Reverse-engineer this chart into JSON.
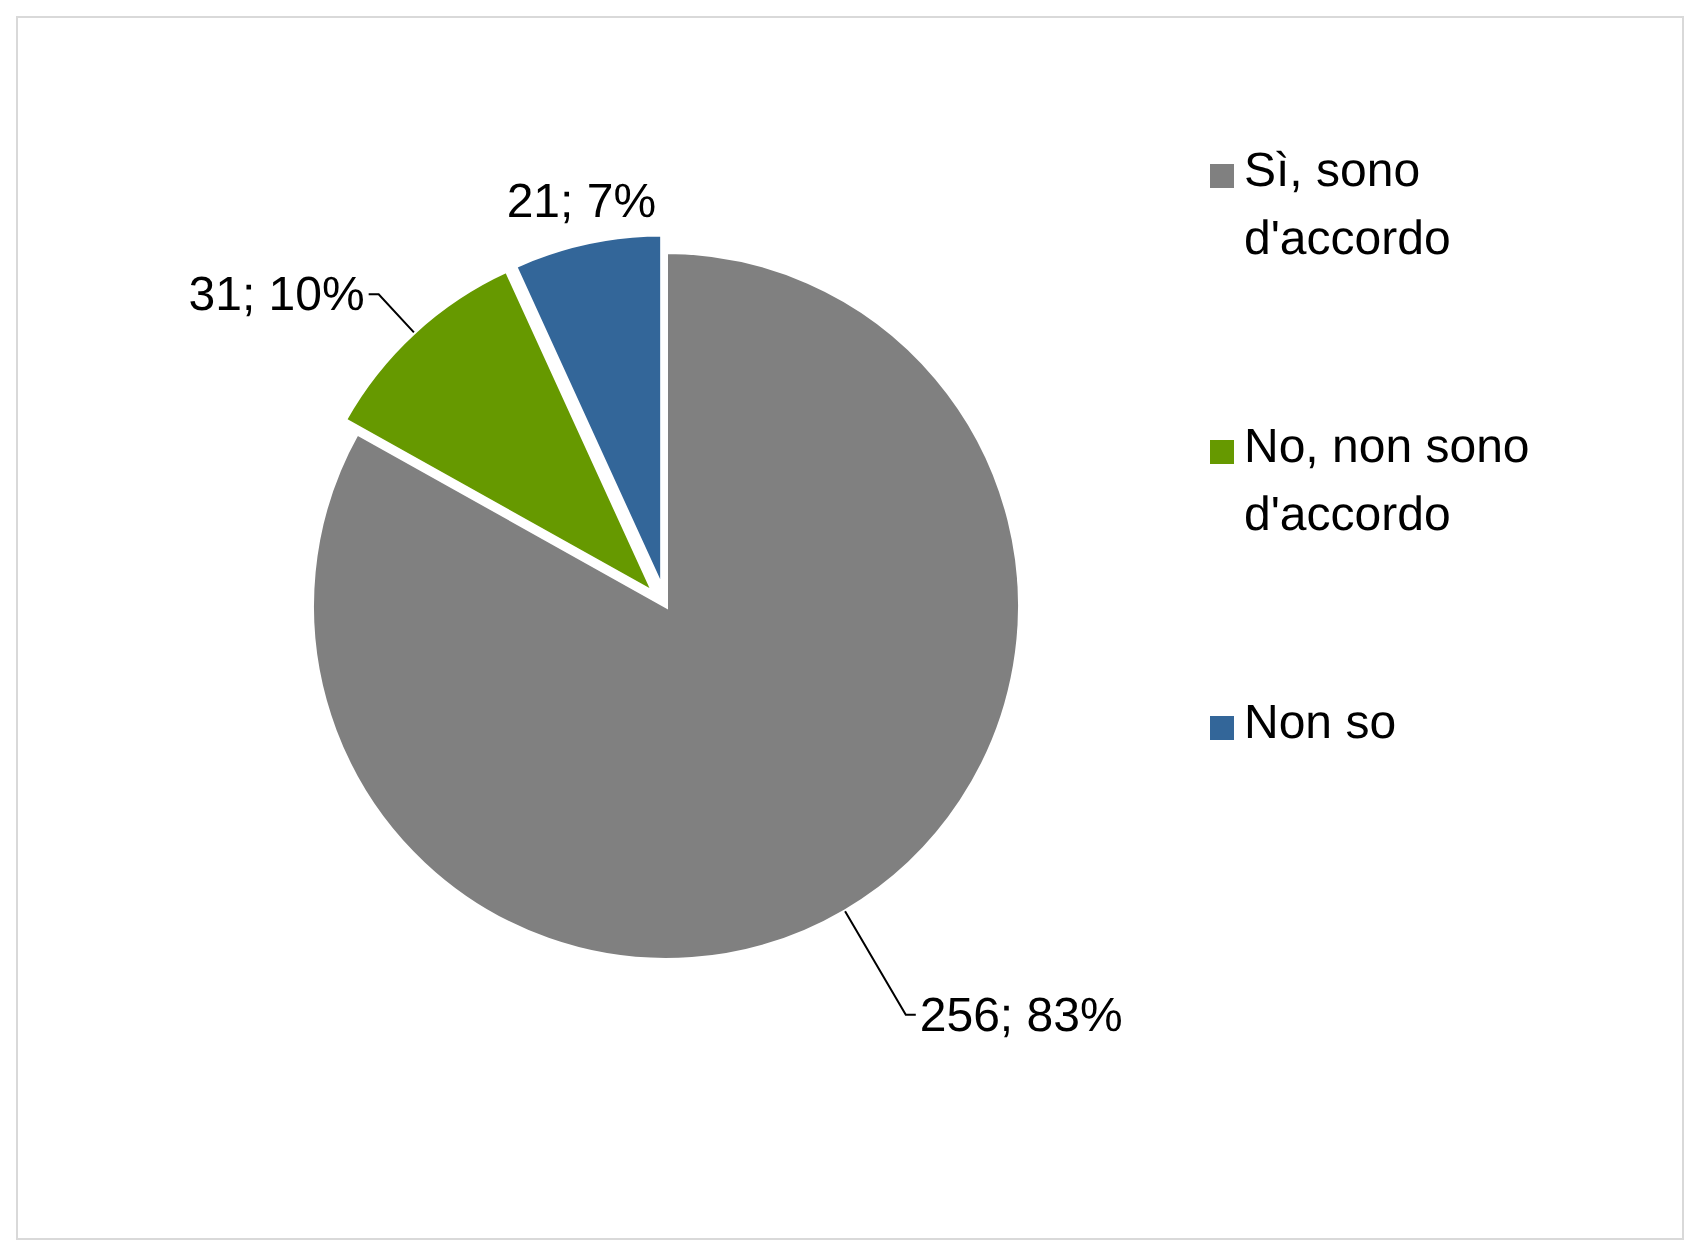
{
  "chart_data": {
    "type": "pie",
    "categories": [
      "Sì, sono d'accordo",
      "No, non sono d'accordo",
      "Non so"
    ],
    "values": [
      256,
      31,
      21
    ],
    "colors": [
      "#808080",
      "#669900",
      "#336699"
    ],
    "value_labels": [
      "256; 83%",
      "31; 10%",
      "21; 7%"
    ],
    "legend": "right"
  }
}
